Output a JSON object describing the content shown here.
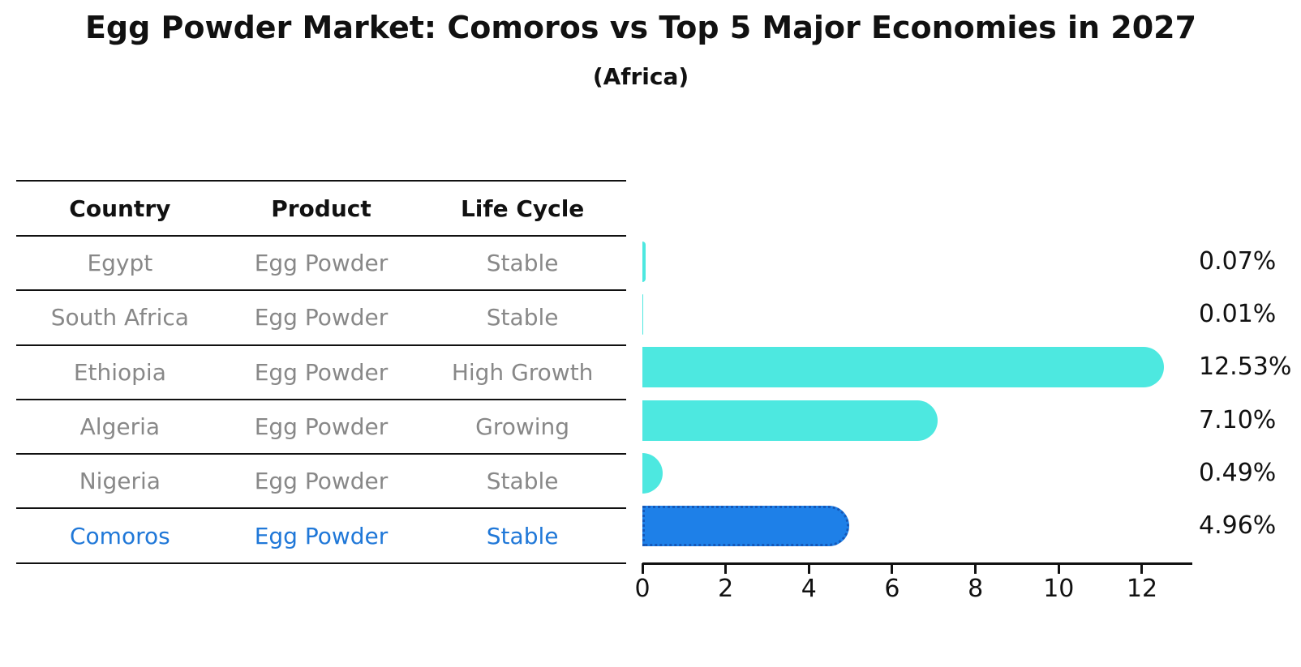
{
  "title": "Egg Powder Market: Comoros vs Top 5 Major Economies in 2027",
  "subtitle": "(Africa)",
  "table": {
    "headers": [
      "Country",
      "Product",
      "Life Cycle"
    ],
    "rows": [
      {
        "country": "Egypt",
        "product": "Egg Powder",
        "life_cycle": "Stable",
        "highlight": false
      },
      {
        "country": "South Africa",
        "product": "Egg Powder",
        "life_cycle": "Stable",
        "highlight": false
      },
      {
        "country": "Ethiopia",
        "product": "Egg Powder",
        "life_cycle": "High Growth",
        "highlight": false
      },
      {
        "country": "Algeria",
        "product": "Egg Powder",
        "life_cycle": "Growing",
        "highlight": false
      },
      {
        "country": "Nigeria",
        "product": "Egg Powder",
        "life_cycle": "Stable",
        "highlight": false
      },
      {
        "country": "Comoros",
        "product": "Egg Powder",
        "life_cycle": "Stable",
        "highlight": true
      }
    ]
  },
  "chart_data": {
    "type": "bar",
    "orientation": "horizontal",
    "title": "Egg Powder Market: Comoros vs Top 5 Major Economies in 2027",
    "subtitle": "(Africa)",
    "categories": [
      "Egypt",
      "South Africa",
      "Ethiopia",
      "Algeria",
      "Nigeria",
      "Comoros"
    ],
    "values": [
      0.07,
      0.01,
      12.53,
      7.1,
      0.49,
      4.96
    ],
    "value_labels": [
      "0.07%",
      "0.01%",
      "12.53%",
      "7.10%",
      "0.49%",
      "4.96%"
    ],
    "xticks": [
      0,
      2,
      4,
      6,
      8,
      10,
      12
    ],
    "xlim": [
      0,
      13.2
    ],
    "grid": false,
    "legend": "none",
    "bar_color": "#4de8e0",
    "highlight_color": "#1e80e8",
    "highlight_border_color": "#1558b8",
    "highlight_index": 5
  },
  "colors": {
    "text": "#111111",
    "muted_text": "#888888",
    "highlight_text": "#2078d8",
    "line": "#111111"
  }
}
